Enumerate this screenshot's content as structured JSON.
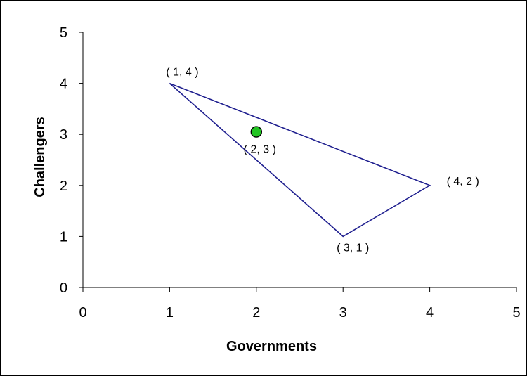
{
  "chart_data": {
    "type": "scatter",
    "xlabel": "Governments",
    "ylabel": "Challengers",
    "xlim": [
      0,
      5
    ],
    "ylim": [
      0,
      5
    ],
    "x_ticks": [
      "0",
      "1",
      "2",
      "3",
      "4",
      "5"
    ],
    "y_ticks": [
      "0",
      "1",
      "2",
      "3",
      "4",
      "5"
    ],
    "grid": false,
    "legend": "none",
    "series": [
      {
        "kind": "triangle",
        "color": "#1F1F8F",
        "points": [
          {
            "x": 1,
            "y": 4,
            "label": "( 1, 4 )"
          },
          {
            "x": 4,
            "y": 2,
            "label": "( 4, 2 )"
          },
          {
            "x": 3,
            "y": 1,
            "label": "( 3, 1 )"
          }
        ]
      },
      {
        "kind": "marker",
        "color": "#22C422",
        "points": [
          {
            "x": 2,
            "y": 3.05,
            "label": "( 2, 3 )"
          }
        ]
      }
    ]
  }
}
